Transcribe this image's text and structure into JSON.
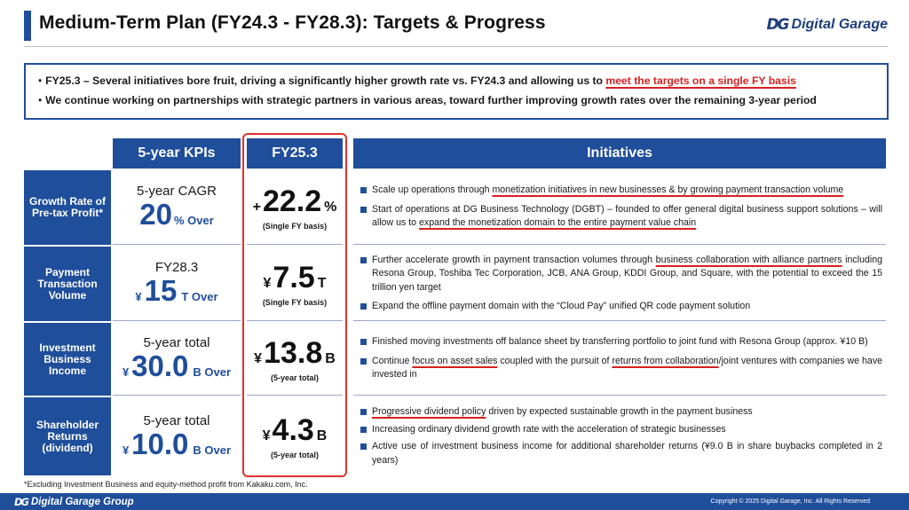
{
  "header": {
    "title": "Medium-Term Plan (FY24.3 - FY28.3): Targets & Progress",
    "logo_mark": "DG",
    "logo_text": "Digital Garage"
  },
  "summary": {
    "line1_pre": "・FY25.3 – Several initiatives bore fruit, driving a significantly higher growth rate vs. FY24.3 and allowing us to ",
    "line1_hl": "meet the targets on a single FY basis",
    "line2": "・We continue working on partnerships with strategic partners in various areas, toward further improving growth rates over the remaining 3-year period"
  },
  "table": {
    "col_kpi": "5-year KPIs",
    "col_fy": "FY25.3",
    "col_init": "Initiatives",
    "rows": [
      {
        "label": "Growth Rate of Pre-tax Profit*",
        "kpi_top": "5-year CAGR",
        "kpi_yen": "",
        "kpi_num": "20",
        "kpi_unit": "% Over",
        "fy_pre": "+",
        "fy_num": "22.2",
        "fy_unit": "%",
        "fy_note": "(Single FY basis)",
        "b1_a": "Scale up operations through ",
        "b1_u": "monetization initiatives in new businesses & by growing payment transaction volume",
        "b1_c": "",
        "b2_a": "Start of operations at DG Business Technology (DGBT) – founded to offer general digital business support solutions – will allow us to ",
        "b2_u": "expand the monetization domain to the entire payment value chain",
        "b2_c": ""
      },
      {
        "label": "Payment Transaction Volume",
        "kpi_top": "FY28.3",
        "kpi_yen": "¥",
        "kpi_num": "15",
        "kpi_unit": "T Over",
        "fy_pre": "¥",
        "fy_num": "7.5",
        "fy_unit": "T",
        "fy_note": "(Single FY basis)",
        "b1_a": "Further accelerate growth in payment transaction volumes through ",
        "b1_u": "business collaboration with alliance partners",
        "b1_c": " including Resona Group, Toshiba Tec Corporation, JCB, ANA Group, KDDI Group, and Square, with the potential to exceed the 15 trillion yen target",
        "b2_a": "Expand the offline payment domain with the “Cloud Pay” unified QR code payment solution",
        "b2_u": "",
        "b2_c": ""
      },
      {
        "label": "Investment Business Income",
        "kpi_top": "5-year total",
        "kpi_yen": "¥",
        "kpi_num": "30.0",
        "kpi_unit": "B Over",
        "fy_pre": "¥",
        "fy_num": "13.8",
        "fy_unit": "B",
        "fy_note": "(5-year total)",
        "b1_a": "Finished moving investments off balance sheet by transferring portfolio to joint fund with Resona Group (approx. ¥10 B)",
        "b1_u": "",
        "b1_c": "",
        "b2_a": "Continue ",
        "b2_u": "focus on asset sales",
        "b2_c": " coupled with the pursuit of ",
        "b2_u2": "returns from collaboration",
        "b2_d": "/joint ventures with companies we have invested in"
      },
      {
        "label": "Shareholder Returns (dividend)",
        "kpi_top": "5-year total",
        "kpi_yen": "¥",
        "kpi_num": "10.0",
        "kpi_unit": "B Over",
        "fy_pre": "¥",
        "fy_num": "4.3",
        "fy_unit": "B",
        "fy_note": "(5-year total)",
        "b1_a": "",
        "b1_u": "Progressive dividend policy",
        "b1_c": " driven by expected sustainable growth in the payment business",
        "b2_a": "Increasing ordinary dividend growth rate with the acceleration of strategic businesses",
        "b3_a": "Active use of investment business income for additional shareholder returns (¥9.0 B in share buybacks completed in 2 years)"
      }
    ]
  },
  "footnote": "*Excluding Investment Business and equity-method profit from Kakaku.com, Inc.",
  "footer": {
    "logo_mark": "DG",
    "logo_text": "Digital Garage Group",
    "copyright": "Copyright © 2025 Digital Garage, Inc. All Rights Reserved"
  }
}
